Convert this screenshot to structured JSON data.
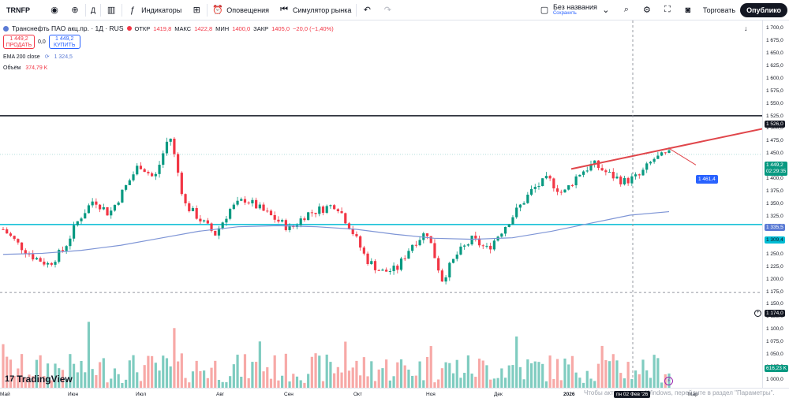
{
  "toolbar": {
    "symbol": "TRNFP",
    "interval": "Д",
    "indicators": "Индикаторы",
    "alerts": "Оповещения",
    "replay": "Симулятор рынка",
    "layout_name": "Без названия",
    "layout_status": "Сохранить",
    "trade": "Торговать",
    "publish": "Опублико"
  },
  "legend": {
    "title": "Транснефть ПАО акц.пр. · 1Д · RUS",
    "open_label": "ОТКР",
    "open": "1419,8",
    "high_label": "МАКС",
    "high": "1422,8",
    "low_label": "МИН",
    "low": "1400,0",
    "close_label": "ЗАКР",
    "close": "1405,0",
    "change": "−20,0 (−1,40%)",
    "sell_price": "1 449,2",
    "sell_label": "ПРОДАТЬ",
    "spread": "0,0",
    "buy_price": "1 449,2",
    "buy_label": "КУПИТЬ",
    "ema_label": "EMA 200 close",
    "ema_value": "1 324,5",
    "vol_label": "Объём",
    "vol_value": "374,79 K"
  },
  "price_axis": [
    "1 700,0",
    "1 675,0",
    "1 650,0",
    "1 625,0",
    "1 600,0",
    "1 575,0",
    "1 550,0",
    "1 525,0",
    "1 500,0",
    "1 475,0",
    "1 450,0",
    "1 425,0",
    "1 400,0",
    "1 375,0",
    "1 350,0",
    "1 325,0",
    "1 300,0",
    "1 275,0",
    "1 250,0",
    "1 225,0",
    "1 200,0",
    "1 175,0",
    "1 150,0",
    "1 125,0",
    "1 100,0",
    "1 075,0",
    "1 050,0",
    "1 025,0",
    "1 000,0"
  ],
  "price_tags": {
    "level_high": "1 526,0",
    "current": "1 449,2",
    "countdown": "02:29:35",
    "ema": "1 335,5",
    "level_mid": "1 309,4",
    "level_low": "1 174,0",
    "volume": "616,23 K",
    "callout": "1 461,4"
  },
  "time_axis": [
    "Май",
    "Июн",
    "Июл",
    "Авг",
    "Сен",
    "Окт",
    "Ноя",
    "Дек",
    "2026",
    "Мар"
  ],
  "crosshair_date": "пн 02 Фев '26",
  "watermark": "Чтобы активировать Windows, перейдите в раздел \"Параметры\".",
  "brand": "TradingView",
  "colors": {
    "up": "#089981",
    "down": "#f23645",
    "ema": "#7e95d6",
    "hline_top": "#131722",
    "hline_mid": "#00bcd4",
    "trendline": "#e0464b",
    "accent": "#2962ff"
  },
  "chart_data": {
    "type": "candlestick",
    "x_labels": [
      "Май",
      "Июн",
      "Июл",
      "Авг",
      "Сен",
      "Окт",
      "Ноя",
      "Дек",
      "2026",
      "Мар"
    ],
    "ylim": [
      1000,
      1710
    ],
    "close_path": [
      1300,
      1270,
      1245,
      1230,
      1260,
      1320,
      1360,
      1330,
      1380,
      1430,
      1400,
      1490,
      1350,
      1320,
      1290,
      1340,
      1360,
      1340,
      1320,
      1300,
      1330,
      1340,
      1350,
      1300,
      1240,
      1215,
      1220,
      1270,
      1295,
      1200,
      1250,
      1280,
      1260,
      1300,
      1340,
      1380,
      1400,
      1370,
      1410,
      1430,
      1410,
      1395,
      1405,
      1440,
      1449
    ],
    "ema_200": [
      1250,
      1252,
      1258,
      1268,
      1282,
      1296,
      1305,
      1307,
      1305,
      1300,
      1290,
      1282,
      1280,
      1283,
      1296,
      1312,
      1328,
      1335
    ],
    "horizontal_levels": [
      1526.0,
      1309.4,
      1174.0
    ]
  }
}
